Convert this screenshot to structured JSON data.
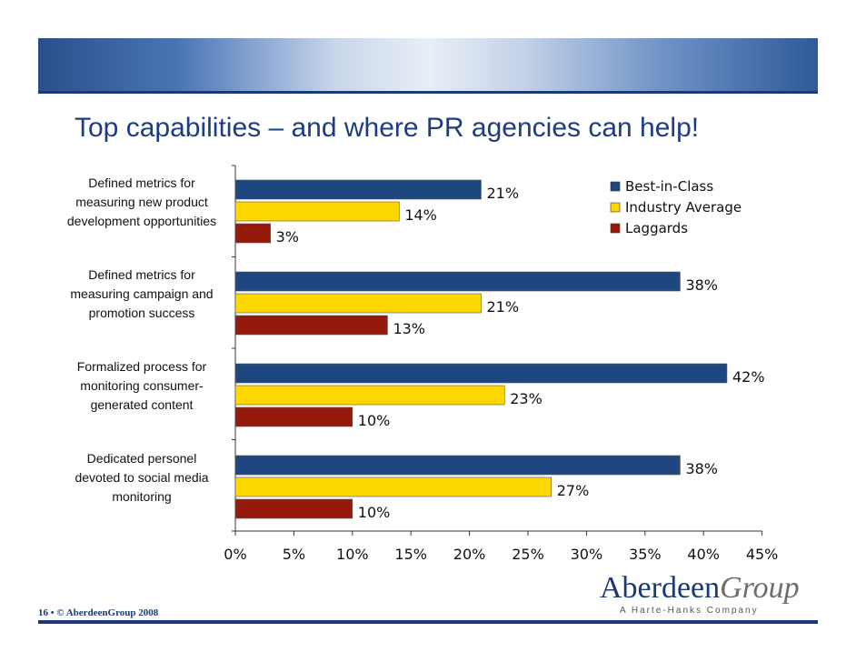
{
  "slide": {
    "title": "Top capabilities – and where PR agencies can help!",
    "footer": "16 • © AberdeenGroup 2008",
    "logo": {
      "main": "Aberdeen",
      "group": "Group",
      "subtitle": "A Harte-Hanks Company"
    },
    "colors": {
      "title": "#1c3c84",
      "brand_navy": "#1b3a75"
    }
  },
  "chart_data": {
    "type": "bar",
    "orientation": "horizontal",
    "categories": [
      [
        "Defined metrics for",
        "measuring new product",
        "development opportunities"
      ],
      [
        "Defined metrics for",
        "measuring campaign and",
        "promotion success"
      ],
      [
        "Formalized process for",
        "monitoring consumer-",
        "generated content"
      ],
      [
        "Dedicated personel",
        "devoted to social media",
        "monitoring"
      ]
    ],
    "series": [
      {
        "name": "Best-in-Class",
        "color": "#1f477f",
        "values": [
          21,
          38,
          42,
          38
        ],
        "labels": [
          "21%",
          "38%",
          "42%",
          "38%"
        ]
      },
      {
        "name": "Industry Average",
        "color": "#ffd700",
        "values": [
          14,
          21,
          23,
          27
        ],
        "labels": [
          "14%",
          "21%",
          "23%",
          "27%"
        ]
      },
      {
        "name": "Laggards",
        "color": "#961a0c",
        "values": [
          3,
          13,
          10,
          10
        ],
        "labels": [
          "3%",
          "13%",
          "10%",
          "10%"
        ]
      }
    ],
    "xlim": [
      0,
      45
    ],
    "xticks": [
      0,
      5,
      10,
      15,
      20,
      25,
      30,
      35,
      40,
      45
    ],
    "xtick_labels": [
      "0%",
      "5%",
      "10%",
      "15%",
      "20%",
      "25%",
      "30%",
      "35%",
      "40%",
      "45%"
    ],
    "xlabel": "",
    "ylabel": "",
    "grid": false,
    "legend_position": "top-right"
  }
}
